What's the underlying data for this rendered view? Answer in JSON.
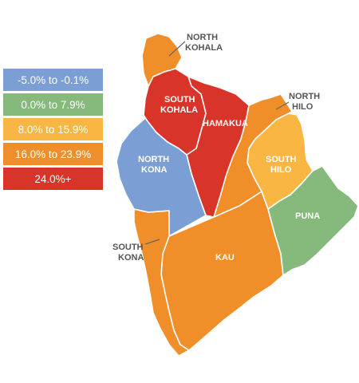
{
  "legend": {
    "items": [
      {
        "label": "-5.0% to -0.1%",
        "color": "#7b9fd4"
      },
      {
        "label": "0.0% to 7.9%",
        "color": "#86b97c"
      },
      {
        "label": "8.0% to 15.9%",
        "color": "#f9b642"
      },
      {
        "label": "16.0% to 23.9%",
        "color": "#f08f2a"
      },
      {
        "label": "24.0%+",
        "color": "#d9342a"
      }
    ]
  },
  "districts": {
    "north_kohala": {
      "line1": "NORTH",
      "line2": "KOHALA",
      "color": "#f08f2a"
    },
    "south_kohala": {
      "line1": "SOUTH",
      "line2": "KOHALA",
      "color": "#d9342a"
    },
    "hamakua": {
      "line1": "HAMAKUA",
      "color": "#d9342a"
    },
    "north_hilo": {
      "line1": "NORTH",
      "line2": "HILO",
      "color": "#f08f2a"
    },
    "south_hilo": {
      "line1": "SOUTH",
      "line2": "HILO",
      "color": "#f9b642"
    },
    "north_kona": {
      "line1": "NORTH",
      "line2": "KONA",
      "color": "#7b9fd4"
    },
    "puna": {
      "line1": "PUNA",
      "color": "#86b97c"
    },
    "kau": {
      "line1": "KAU",
      "color": "#f08f2a"
    },
    "south_kona": {
      "line1": "SOUTH",
      "line2": "KONA",
      "color": "#f08f2a"
    }
  }
}
